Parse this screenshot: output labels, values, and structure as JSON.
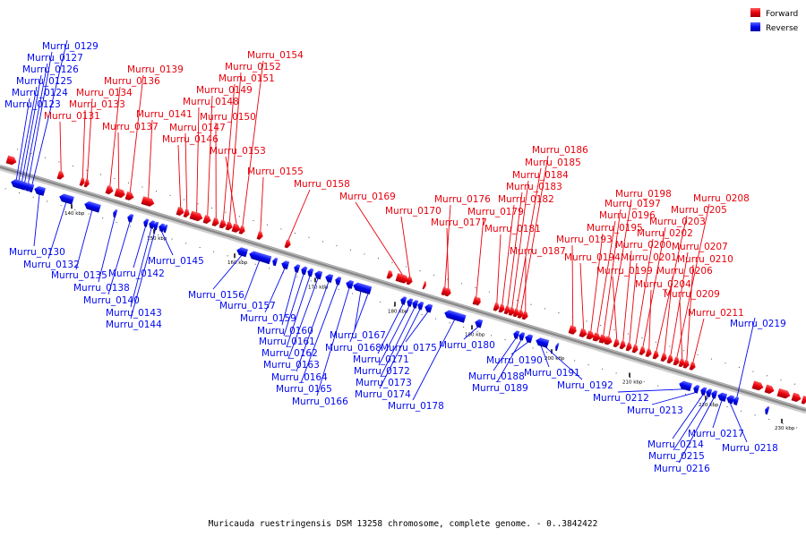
{
  "caption": "Muricauda ruestringensis DSM 13258 chromosome, complete genome. - 0..3842422",
  "legend": [
    {
      "label": "Forward",
      "color": "#e8000b"
    },
    {
      "label": "Reverse",
      "color": "#0008f0"
    }
  ],
  "colors": {
    "forward": "#e8000b",
    "reverse": "#0008f0",
    "backbone": "#8a8a8a"
  },
  "ticks": [
    "140 kbp",
    "150 kbp",
    "160 kbp",
    "170 kbp",
    "180 kbp",
    "190 kbp",
    "200 kbp",
    "210 kbp",
    "220 kbp",
    "230 kbp"
  ],
  "genes": [
    {
      "name": "Murru_0123",
      "strand": "reverse"
    },
    {
      "name": "Murru_0124",
      "strand": "reverse"
    },
    {
      "name": "Murru_0125",
      "strand": "reverse"
    },
    {
      "name": "Murru_0126",
      "strand": "reverse"
    },
    {
      "name": "Murru_0127",
      "strand": "reverse"
    },
    {
      "name": "Murru_0129",
      "strand": "reverse"
    },
    {
      "name": "Murru_0130",
      "strand": "reverse"
    },
    {
      "name": "Murru_0131",
      "strand": "forward"
    },
    {
      "name": "Murru_0132",
      "strand": "reverse"
    },
    {
      "name": "Murru_0133",
      "strand": "forward"
    },
    {
      "name": "Murru_0134",
      "strand": "forward"
    },
    {
      "name": "Murru_0135",
      "strand": "reverse"
    },
    {
      "name": "Murru_0136",
      "strand": "forward"
    },
    {
      "name": "Murru_0137",
      "strand": "forward"
    },
    {
      "name": "Murru_0138",
      "strand": "reverse"
    },
    {
      "name": "Murru_0139",
      "strand": "forward"
    },
    {
      "name": "Murru_0140",
      "strand": "reverse"
    },
    {
      "name": "Murru_0141",
      "strand": "forward"
    },
    {
      "name": "Murru_0142",
      "strand": "reverse"
    },
    {
      "name": "Murru_0143",
      "strand": "reverse"
    },
    {
      "name": "Murru_0144",
      "strand": "reverse"
    },
    {
      "name": "Murru_0145",
      "strand": "reverse"
    },
    {
      "name": "Murru_0146",
      "strand": "forward"
    },
    {
      "name": "Murru_0147",
      "strand": "forward"
    },
    {
      "name": "Murru_0148",
      "strand": "forward"
    },
    {
      "name": "Murru_0149",
      "strand": "forward"
    },
    {
      "name": "Murru_0150",
      "strand": "forward"
    },
    {
      "name": "Murru_0151",
      "strand": "forward"
    },
    {
      "name": "Murru_0152",
      "strand": "forward"
    },
    {
      "name": "Murru_0153",
      "strand": "forward"
    },
    {
      "name": "Murru_0154",
      "strand": "forward"
    },
    {
      "name": "Murru_0155",
      "strand": "forward"
    },
    {
      "name": "Murru_0156",
      "strand": "reverse"
    },
    {
      "name": "Murru_0157",
      "strand": "reverse"
    },
    {
      "name": "Murru_0158",
      "strand": "forward"
    },
    {
      "name": "Murru_0159",
      "strand": "reverse"
    },
    {
      "name": "Murru_0160",
      "strand": "reverse"
    },
    {
      "name": "Murru_0161",
      "strand": "reverse"
    },
    {
      "name": "Murru_0162",
      "strand": "reverse"
    },
    {
      "name": "Murru_0163",
      "strand": "reverse"
    },
    {
      "name": "Murru_0164",
      "strand": "reverse"
    },
    {
      "name": "Murru_0165",
      "strand": "reverse"
    },
    {
      "name": "Murru_0166",
      "strand": "reverse"
    },
    {
      "name": "Murru_0167",
      "strand": "reverse"
    },
    {
      "name": "Murru_0168",
      "strand": "reverse"
    },
    {
      "name": "Murru_0169",
      "strand": "forward"
    },
    {
      "name": "Murru_0170",
      "strand": "forward"
    },
    {
      "name": "Murru_0171",
      "strand": "reverse"
    },
    {
      "name": "Murru_0172",
      "strand": "reverse"
    },
    {
      "name": "Murru_0173",
      "strand": "reverse"
    },
    {
      "name": "Murru_0174",
      "strand": "reverse"
    },
    {
      "name": "Murru_0175",
      "strand": "reverse"
    },
    {
      "name": "Murru_0176",
      "strand": "forward"
    },
    {
      "name": "Murru_0177",
      "strand": "forward"
    },
    {
      "name": "Murru_0178",
      "strand": "reverse"
    },
    {
      "name": "Murru_0179",
      "strand": "forward"
    },
    {
      "name": "Murru_0180",
      "strand": "reverse"
    },
    {
      "name": "Murru_0181",
      "strand": "forward"
    },
    {
      "name": "Murru_0182",
      "strand": "forward"
    },
    {
      "name": "Murru_0183",
      "strand": "forward"
    },
    {
      "name": "Murru_0184",
      "strand": "forward"
    },
    {
      "name": "Murru_0185",
      "strand": "forward"
    },
    {
      "name": "Murru_0186",
      "strand": "forward"
    },
    {
      "name": "Murru_0187",
      "strand": "forward"
    },
    {
      "name": "Murru_0188",
      "strand": "reverse"
    },
    {
      "name": "Murru_0189",
      "strand": "reverse"
    },
    {
      "name": "Murru_0190",
      "strand": "reverse"
    },
    {
      "name": "Murru_0191",
      "strand": "reverse"
    },
    {
      "name": "Murru_0192",
      "strand": "reverse"
    },
    {
      "name": "Murru_0193",
      "strand": "forward"
    },
    {
      "name": "Murru_0194",
      "strand": "forward"
    },
    {
      "name": "Murru_0195",
      "strand": "forward"
    },
    {
      "name": "Murru_0196",
      "strand": "forward"
    },
    {
      "name": "Murru_0197",
      "strand": "forward"
    },
    {
      "name": "Murru_0198",
      "strand": "forward"
    },
    {
      "name": "Murru_0199",
      "strand": "forward"
    },
    {
      "name": "Murru_0200",
      "strand": "forward"
    },
    {
      "name": "Murru_0201",
      "strand": "forward"
    },
    {
      "name": "Murru_0202",
      "strand": "forward"
    },
    {
      "name": "Murru_0203",
      "strand": "forward"
    },
    {
      "name": "Murru_0204",
      "strand": "forward"
    },
    {
      "name": "Murru_0205",
      "strand": "forward"
    },
    {
      "name": "Murru_0206",
      "strand": "forward"
    },
    {
      "name": "Murru_0207",
      "strand": "forward"
    },
    {
      "name": "Murru_0208",
      "strand": "forward"
    },
    {
      "name": "Murru_0209",
      "strand": "forward"
    },
    {
      "name": "Murru_0210",
      "strand": "forward"
    },
    {
      "name": "Murru_0211",
      "strand": "forward"
    },
    {
      "name": "Murru_0212",
      "strand": "reverse"
    },
    {
      "name": "Murru_0213",
      "strand": "reverse"
    },
    {
      "name": "Murru_0214",
      "strand": "reverse"
    },
    {
      "name": "Murru_0215",
      "strand": "reverse"
    },
    {
      "name": "Murru_0216",
      "strand": "reverse"
    },
    {
      "name": "Murru_0217",
      "strand": "reverse"
    },
    {
      "name": "Murru_0218",
      "strand": "reverse"
    },
    {
      "name": "Murru_0219",
      "strand": "reverse"
    }
  ]
}
